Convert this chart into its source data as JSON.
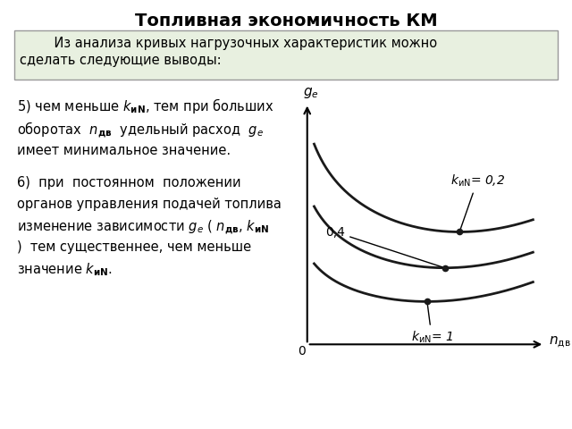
{
  "title": "Топливная экономичность КМ",
  "box_text_line1": "    Из анализа кривых нагрузочных характеристик можно",
  "box_text_line2": "сделать следующие выводы:",
  "background_color": "#ffffff",
  "box_bg_color": "#e8f0e0",
  "box_border_color": "#999999",
  "curve_color": "#1a1a1a",
  "curve_linewidth": 2.0,
  "title_fontsize": 14,
  "body_fontsize": 10.5
}
